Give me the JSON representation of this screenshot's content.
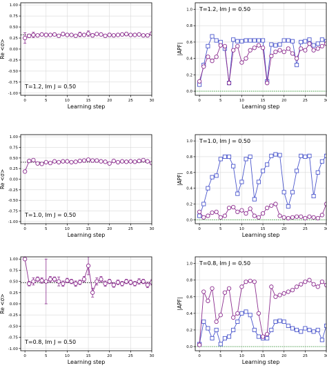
{
  "chart_data": [
    {
      "type": "line",
      "ylabel": "Re <σ>",
      "xlabel": "Learning step",
      "annotation": "T=1.2, Im J = 0.50",
      "xlim": [
        -1,
        30
      ],
      "ylim": [
        -1.05,
        1.05
      ],
      "xticks": [
        0,
        5,
        10,
        15,
        20,
        25,
        30
      ],
      "yticks": [
        "-1.00",
        "-0.75",
        "-0.50",
        "-0.25",
        "0.00",
        "0.25",
        "0.50",
        "0.75",
        "1.00"
      ],
      "grid": true,
      "reference_line": 0.32,
      "series": [
        {
          "color": "#8b2c8e",
          "marker": "circle",
          "x": [
            0,
            1,
            2,
            3,
            4,
            5,
            6,
            7,
            8,
            9,
            10,
            11,
            12,
            13,
            14,
            15,
            16,
            17,
            18,
            19,
            20,
            21,
            22,
            23,
            24,
            25,
            26,
            27,
            28,
            29,
            30
          ],
          "values": [
            0.25,
            0.3,
            0.32,
            0.31,
            0.33,
            0.32,
            0.32,
            0.33,
            0.3,
            0.34,
            0.32,
            0.32,
            0.3,
            0.33,
            0.32,
            0.35,
            0.31,
            0.34,
            0.33,
            0.3,
            0.32,
            0.31,
            0.32,
            0.33,
            0.34,
            0.32,
            0.32,
            0.33,
            0.31,
            0.31,
            0.35
          ],
          "errors": [
            0.12,
            0.04,
            0.06,
            0.03,
            0.03,
            0.04,
            0.03,
            0.03,
            0.02,
            0.04,
            0.03,
            0.03,
            0.03,
            0.05,
            0.03,
            0.06,
            0.04,
            0.03,
            0.03,
            0.03,
            0.04,
            0.03,
            0.03,
            0.03,
            0.04,
            0.03,
            0.03,
            0.03,
            0.03,
            0.03,
            0.03
          ]
        }
      ]
    },
    {
      "type": "line",
      "ylabel": "|APF|",
      "xlabel": "Learning step",
      "annotation": "T=1.2, Im J = 0.50",
      "xlim": [
        -1,
        30
      ],
      "ylim": [
        -0.05,
        1.08
      ],
      "xticks": [
        0,
        5,
        10,
        15,
        20,
        25,
        30
      ],
      "yticks": [
        "0.0",
        "0.2",
        "0.4",
        "0.6",
        "0.8",
        "1.0"
      ],
      "grid": true,
      "reference_line": 0.0,
      "series": [
        {
          "color": "#4a56cc",
          "marker": "square",
          "x": [
            0,
            1,
            2,
            3,
            4,
            5,
            6,
            7,
            8,
            9,
            10,
            11,
            12,
            13,
            14,
            15,
            16,
            17,
            18,
            19,
            20,
            21,
            22,
            23,
            24,
            25,
            26,
            27,
            28,
            29,
            30
          ],
          "values": [
            0.08,
            0.32,
            0.55,
            0.67,
            0.62,
            0.6,
            0.52,
            0.1,
            0.63,
            0.61,
            0.61,
            0.62,
            0.62,
            0.62,
            0.62,
            0.62,
            0.12,
            0.57,
            0.56,
            0.57,
            0.62,
            0.62,
            0.61,
            0.32,
            0.6,
            0.61,
            0.63,
            0.56,
            0.58,
            0.63,
            0.61
          ]
        },
        {
          "color": "#8b2c8e",
          "marker": "circle",
          "x": [
            0,
            1,
            2,
            3,
            4,
            5,
            6,
            7,
            8,
            9,
            10,
            11,
            12,
            13,
            14,
            15,
            16,
            17,
            18,
            19,
            20,
            21,
            22,
            23,
            24,
            25,
            26,
            27,
            28,
            29,
            30
          ],
          "values": [
            0.12,
            0.3,
            0.42,
            0.37,
            0.42,
            0.56,
            0.55,
            0.1,
            0.5,
            0.55,
            0.35,
            0.4,
            0.5,
            0.53,
            0.56,
            0.53,
            0.1,
            0.43,
            0.48,
            0.5,
            0.48,
            0.52,
            0.46,
            0.4,
            0.52,
            0.5,
            0.58,
            0.5,
            0.52,
            0.55,
            0.58
          ]
        }
      ]
    },
    {
      "type": "line",
      "ylabel": "Re <σ>",
      "xlabel": "Learning step",
      "annotation": "T=1.0, Im J = 0.50",
      "xlim": [
        -1,
        30
      ],
      "ylim": [
        -1.05,
        1.05
      ],
      "xticks": [
        0,
        5,
        10,
        15,
        20,
        25,
        30
      ],
      "yticks": [
        "-1.00",
        "-0.75",
        "-0.50",
        "-0.25",
        "0.00",
        "0.25",
        "0.50",
        "0.75",
        "1.00"
      ],
      "grid": true,
      "reference_line": 0.4,
      "series": [
        {
          "color": "#8b2c8e",
          "marker": "circle",
          "x": [
            0,
            1,
            2,
            3,
            4,
            5,
            6,
            7,
            8,
            9,
            10,
            11,
            12,
            13,
            14,
            15,
            16,
            17,
            18,
            19,
            20,
            21,
            22,
            23,
            24,
            25,
            26,
            27,
            28,
            29,
            30
          ],
          "values": [
            0.18,
            0.43,
            0.45,
            0.37,
            0.36,
            0.4,
            0.38,
            0.42,
            0.4,
            0.42,
            0.42,
            0.4,
            0.41,
            0.43,
            0.44,
            0.46,
            0.44,
            0.44,
            0.42,
            0.41,
            0.37,
            0.43,
            0.4,
            0.42,
            0.41,
            0.42,
            0.41,
            0.43,
            0.45,
            0.42,
            0.38
          ]
        }
      ]
    },
    {
      "type": "line",
      "ylabel": "|APF|",
      "xlabel": "Learning step",
      "annotation": "T=1.0, Im J = 0.50",
      "xlim": [
        -1,
        30
      ],
      "ylim": [
        -0.05,
        1.08
      ],
      "xticks": [
        0,
        5,
        10,
        15,
        20,
        25,
        30
      ],
      "yticks": [
        "0.0",
        "0.2",
        "0.4",
        "0.6",
        "0.8",
        "1.0"
      ],
      "grid": true,
      "reference_line": 0.0,
      "series": [
        {
          "color": "#4a56cc",
          "marker": "square",
          "x": [
            0,
            1,
            2,
            3,
            4,
            5,
            6,
            7,
            8,
            9,
            10,
            11,
            12,
            13,
            14,
            15,
            16,
            17,
            18,
            19,
            20,
            21,
            22,
            23,
            24,
            25,
            26,
            27,
            28,
            29,
            30
          ],
          "values": [
            0.05,
            0.2,
            0.4,
            0.54,
            0.56,
            0.77,
            0.8,
            0.8,
            0.68,
            0.33,
            0.48,
            0.77,
            0.8,
            0.26,
            0.48,
            0.62,
            0.7,
            0.81,
            0.83,
            0.82,
            0.35,
            0.17,
            0.35,
            0.62,
            0.81,
            0.8,
            0.81,
            0.3,
            0.6,
            0.74,
            0.81
          ]
        },
        {
          "color": "#8b2c8e",
          "marker": "circle",
          "x": [
            0,
            1,
            2,
            3,
            4,
            5,
            6,
            7,
            8,
            9,
            10,
            11,
            12,
            13,
            14,
            15,
            16,
            17,
            18,
            19,
            20,
            21,
            22,
            23,
            24,
            25,
            26,
            27,
            28,
            29,
            30
          ],
          "values": [
            0.1,
            0.03,
            0.05,
            0.09,
            0.1,
            0.03,
            0.05,
            0.15,
            0.16,
            0.1,
            0.12,
            0.08,
            0.14,
            0.05,
            0.03,
            0.08,
            0.15,
            0.18,
            0.2,
            0.05,
            0.03,
            0.02,
            0.03,
            0.04,
            0.04,
            0.02,
            0.04,
            0.03,
            0.02,
            0.06,
            0.2
          ]
        }
      ]
    },
    {
      "type": "line",
      "ylabel": "Re <σ>",
      "xlabel": "Learning step",
      "annotation": "T=0.8, Im J = 0.50",
      "xlim": [
        -1,
        30
      ],
      "ylim": [
        -1.05,
        1.05
      ],
      "xticks": [
        0,
        5,
        10,
        15,
        20,
        25,
        30
      ],
      "yticks": [
        "-1.00",
        "-0.75",
        "-0.50",
        "-0.25",
        "0.00",
        "0.25",
        "0.50",
        "0.75",
        "1.00"
      ],
      "grid": true,
      "reference_line": 0.47,
      "series": [
        {
          "color": "#8b2c8e",
          "marker": "circle",
          "x": [
            0,
            1,
            2,
            3,
            4,
            5,
            6,
            7,
            8,
            9,
            10,
            11,
            12,
            13,
            14,
            15,
            16,
            17,
            18,
            19,
            20,
            21,
            22,
            23,
            24,
            25,
            26,
            27,
            28,
            29,
            30
          ],
          "values": [
            1.0,
            0.45,
            0.5,
            0.55,
            0.52,
            0.5,
            0.55,
            0.55,
            0.5,
            0.45,
            0.52,
            0.5,
            0.45,
            0.48,
            0.55,
            0.85,
            0.25,
            0.5,
            0.55,
            0.45,
            0.5,
            0.42,
            0.48,
            0.45,
            0.5,
            0.48,
            0.45,
            0.5,
            0.5,
            0.42,
            0.48
          ],
          "errors": [
            0.0,
            0.05,
            0.08,
            0.05,
            0.06,
            0.5,
            0.06,
            0.05,
            0.1,
            0.06,
            0.05,
            0.05,
            0.06,
            0.05,
            0.06,
            0.2,
            0.1,
            0.08,
            0.06,
            0.06,
            0.05,
            0.05,
            0.05,
            0.05,
            0.05,
            0.05,
            0.05,
            0.06,
            0.05,
            0.06,
            0.06
          ]
        }
      ]
    },
    {
      "type": "line",
      "ylabel": "|APF|",
      "xlabel": "Learning step",
      "annotation": "T=0.8, Im J = 0.50",
      "xlim": [
        -1,
        30
      ],
      "ylim": [
        -0.05,
        1.08
      ],
      "xticks": [
        0,
        5,
        10,
        15,
        20,
        25,
        30
      ],
      "yticks": [
        "0.0",
        "0.2",
        "0.4",
        "0.6",
        "0.8",
        "1.0"
      ],
      "grid": true,
      "reference_line": 0.0,
      "series": [
        {
          "color": "#4a56cc",
          "marker": "square",
          "x": [
            0,
            1,
            2,
            3,
            4,
            5,
            6,
            7,
            8,
            9,
            10,
            11,
            12,
            13,
            14,
            15,
            16,
            17,
            18,
            19,
            20,
            21,
            22,
            23,
            24,
            25,
            26,
            27,
            28,
            29,
            30
          ],
          "values": [
            0.03,
            0.3,
            0.22,
            0.1,
            0.2,
            0.03,
            0.1,
            0.12,
            0.2,
            0.3,
            0.4,
            0.42,
            0.38,
            0.2,
            0.12,
            0.1,
            0.1,
            0.2,
            0.3,
            0.31,
            0.3,
            0.25,
            0.22,
            0.2,
            0.18,
            0.22,
            0.2,
            0.18,
            0.2,
            0.08,
            0.25
          ]
        },
        {
          "color": "#8b2c8e",
          "marker": "circle",
          "x": [
            0,
            1,
            2,
            3,
            4,
            5,
            6,
            7,
            8,
            9,
            10,
            11,
            12,
            13,
            14,
            15,
            16,
            17,
            18,
            19,
            20,
            21,
            22,
            23,
            24,
            25,
            26,
            27,
            28,
            29,
            30
          ],
          "values": [
            0.02,
            0.66,
            0.55,
            0.7,
            0.3,
            0.38,
            0.65,
            0.7,
            0.35,
            0.4,
            0.72,
            0.78,
            0.79,
            0.78,
            0.4,
            0.12,
            0.15,
            0.72,
            0.6,
            0.62,
            0.64,
            0.66,
            0.68,
            0.72,
            0.75,
            0.78,
            0.8,
            0.75,
            0.72,
            0.78,
            0.74
          ]
        }
      ]
    }
  ]
}
